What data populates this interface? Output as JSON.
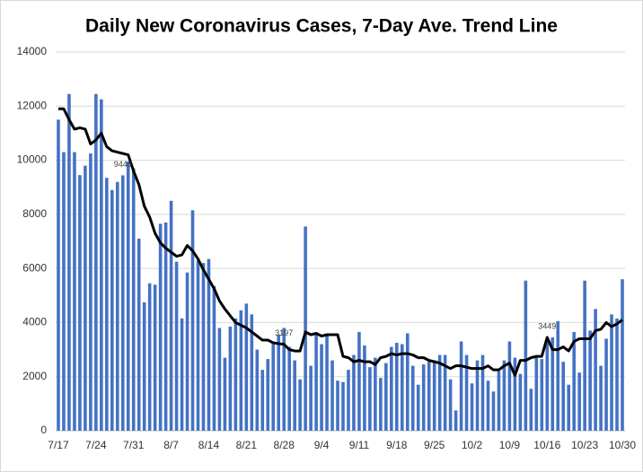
{
  "chart_data": {
    "type": "bar-line",
    "title": "Daily New Coronavirus Cases, 7-Day Ave. Trend Line",
    "categories": [
      "7/17",
      null,
      null,
      null,
      null,
      null,
      null,
      "7/24",
      null,
      null,
      null,
      null,
      null,
      null,
      "7/31",
      null,
      null,
      null,
      null,
      null,
      null,
      "8/7",
      null,
      null,
      null,
      null,
      null,
      null,
      "8/14",
      null,
      null,
      null,
      null,
      null,
      null,
      "8/21",
      null,
      null,
      null,
      null,
      null,
      null,
      "8/28",
      null,
      null,
      null,
      null,
      null,
      null,
      "9/4",
      null,
      null,
      null,
      null,
      null,
      null,
      "9/11",
      null,
      null,
      null,
      null,
      null,
      null,
      "9/18",
      null,
      null,
      null,
      null,
      null,
      null,
      "9/25",
      null,
      null,
      null,
      null,
      null,
      null,
      "10/2",
      null,
      null,
      null,
      null,
      null,
      null,
      "10/9",
      null,
      null,
      null,
      null,
      null,
      null,
      "10/16",
      null,
      null,
      null,
      null,
      null,
      null,
      "10/23",
      null,
      null,
      null,
      null,
      null,
      null,
      "10/30"
    ],
    "series": [
      {
        "type": "bar",
        "color": "#4472c4",
        "values": [
          11500,
          10300,
          12450,
          10300,
          9450,
          9800,
          10250,
          12450,
          12250,
          9350,
          8900,
          9200,
          9440,
          9950,
          9700,
          7100,
          4750,
          5450,
          5400,
          7650,
          7700,
          8500,
          6250,
          4150,
          5850,
          8150,
          6300,
          6200,
          6350,
          5350,
          3800,
          2700,
          3850,
          4150,
          4450,
          4700,
          4300,
          3000,
          2250,
          2650,
          3200,
          3550,
          3800,
          3100,
          2600,
          1900,
          7550,
          2400,
          3550,
          3200,
          3500,
          2600,
          1850,
          1800,
          2250,
          2800,
          3650,
          3150,
          2350,
          2700,
          1950,
          2500,
          3100,
          3250,
          3200,
          3600,
          2400,
          1700,
          2450,
          2550,
          2600,
          2800,
          2800,
          1900,
          750,
          3300,
          2800,
          1750,
          2600,
          2800,
          1850,
          1450,
          2200,
          2600,
          3300,
          2700,
          2100,
          5550,
          1550,
          2700,
          2650,
          3350,
          3450,
          4050,
          2550,
          1700,
          3650,
          2150,
          5550,
          3700,
          4500,
          2400,
          3400,
          4300,
          4150,
          5600
        ],
        "value_labels": [
          null,
          null,
          null,
          null,
          null,
          null,
          null,
          null,
          null,
          null,
          null,
          null,
          "9440",
          null,
          null,
          null,
          null,
          null,
          null,
          null,
          null,
          null,
          null,
          null,
          null,
          null,
          null,
          null,
          null,
          null,
          null,
          null,
          null,
          null,
          null,
          null,
          null,
          null,
          null,
          null,
          null,
          null,
          null,
          null,
          null,
          null,
          null,
          null,
          null,
          null,
          null,
          null,
          null,
          null,
          null,
          null,
          null,
          null,
          null,
          null,
          null,
          null,
          null,
          null,
          null,
          null,
          null,
          null,
          null,
          null,
          null,
          null,
          null,
          null,
          null,
          null,
          null,
          null,
          null,
          null,
          null,
          null,
          null,
          null,
          null,
          null,
          null,
          null,
          null,
          null,
          null,
          null,
          null,
          null,
          null,
          null,
          null,
          null,
          null,
          null,
          null,
          null,
          null,
          null,
          null,
          null
        ]
      },
      {
        "type": "line",
        "color": "#000000",
        "values": [
          11900,
          11900,
          11500,
          11150,
          11200,
          11150,
          10600,
          10750,
          11000,
          10500,
          10350,
          10300,
          10250,
          10200,
          9600,
          9100,
          8300,
          7900,
          7300,
          6950,
          6750,
          6600,
          6450,
          6500,
          6850,
          6650,
          6350,
          5950,
          5600,
          5250,
          4800,
          4500,
          4250,
          4000,
          3900,
          3800,
          3650,
          3500,
          3350,
          3350,
          3250,
          3220,
          3197,
          3000,
          2950,
          2950,
          3650,
          3550,
          3600,
          3500,
          3550,
          3550,
          3550,
          2750,
          2700,
          2550,
          2600,
          2550,
          2550,
          2450,
          2700,
          2750,
          2850,
          2800,
          2850,
          2850,
          2800,
          2700,
          2700,
          2600,
          2550,
          2500,
          2400,
          2300,
          2400,
          2400,
          2350,
          2300,
          2300,
          2300,
          2400,
          2250,
          2250,
          2400,
          2500,
          2050,
          2600,
          2600,
          2700,
          2750,
          2750,
          3449,
          3000,
          3000,
          3100,
          2950,
          3300,
          3400,
          3400,
          3400,
          3700,
          3750,
          4000,
          3850,
          3950,
          4100
        ],
        "value_labels": [
          null,
          null,
          null,
          null,
          null,
          null,
          null,
          null,
          null,
          null,
          null,
          null,
          null,
          null,
          null,
          null,
          null,
          null,
          null,
          null,
          null,
          null,
          null,
          null,
          null,
          null,
          null,
          null,
          null,
          null,
          null,
          null,
          null,
          null,
          null,
          null,
          null,
          null,
          null,
          null,
          null,
          null,
          "3197",
          null,
          null,
          null,
          null,
          null,
          null,
          null,
          null,
          null,
          null,
          null,
          null,
          null,
          null,
          null,
          null,
          null,
          null,
          null,
          null,
          null,
          null,
          null,
          null,
          null,
          null,
          null,
          null,
          null,
          null,
          null,
          null,
          null,
          null,
          null,
          null,
          null,
          null,
          null,
          null,
          null,
          null,
          null,
          null,
          null,
          null,
          null,
          null,
          "3449",
          null,
          null,
          null,
          null,
          null,
          null,
          null,
          null,
          null,
          null,
          null,
          null,
          null,
          null
        ]
      }
    ],
    "ylim": [
      0,
      14000
    ],
    "yticks": [
      0,
      2000,
      4000,
      6000,
      8000,
      10000,
      12000,
      14000
    ],
    "grid": true
  }
}
